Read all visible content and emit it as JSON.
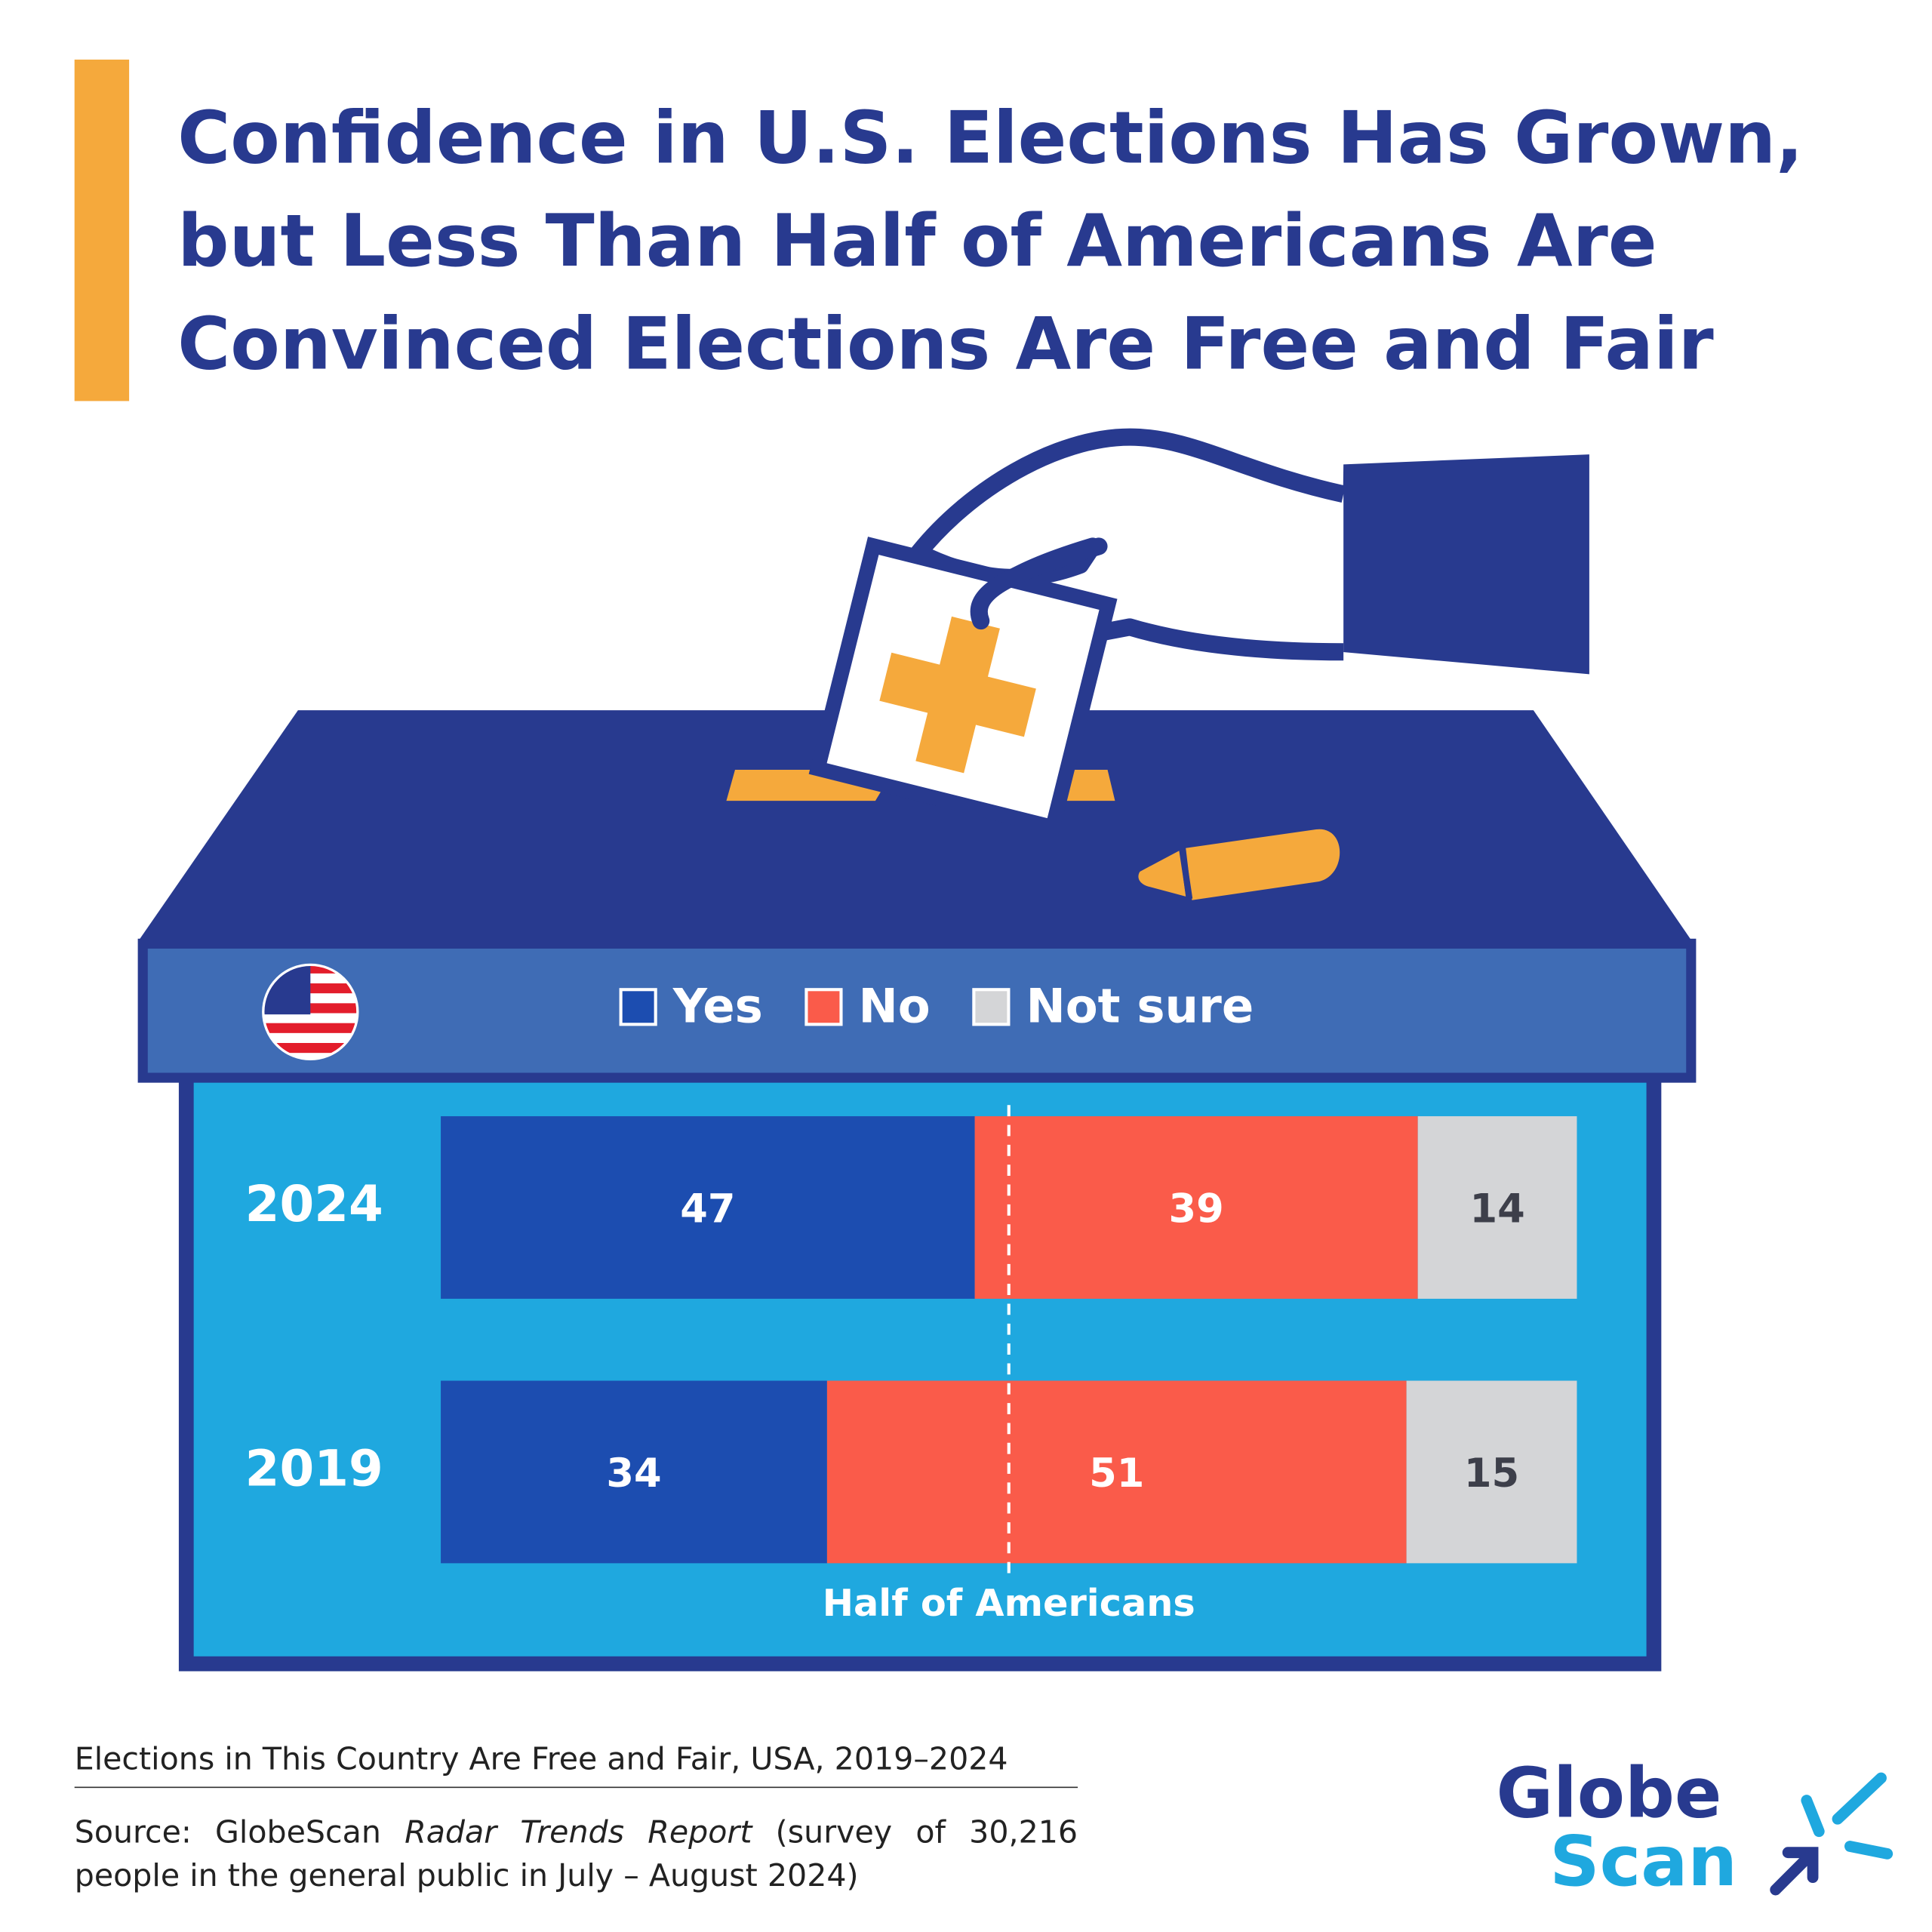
{
  "chart_data": {
    "type": "stacked-bar-horizontal",
    "title": "Confidence in U.S. Elections Has Grown, but Less Than Half of Americans Are Convinced Elections Are Free and Fair",
    "categories": [
      "2024",
      "2019"
    ],
    "series": [
      {
        "name": "Yes",
        "color": "#1c4db0",
        "values": [
          47,
          34
        ]
      },
      {
        "name": "No",
        "color": "#fa5b4a",
        "values": [
          39,
          51
        ]
      },
      {
        "name": "Not sure",
        "color": "#d4d5d7",
        "values": [
          14,
          15
        ]
      }
    ],
    "xlim": [
      0,
      100
    ],
    "reference_line": {
      "value": 50,
      "label": "Half of Americans"
    },
    "caption": "Elections in This Country Are Free and Fair, USA, 2019–2024",
    "source": {
      "prefix": "Source: GlobeScan",
      "italic": "Radar Trends Report",
      "suffix": "(survey of 30,216 people in the general public in July – August 2024)"
    },
    "logo": {
      "line1": "Globe",
      "line2": "Scan"
    }
  }
}
